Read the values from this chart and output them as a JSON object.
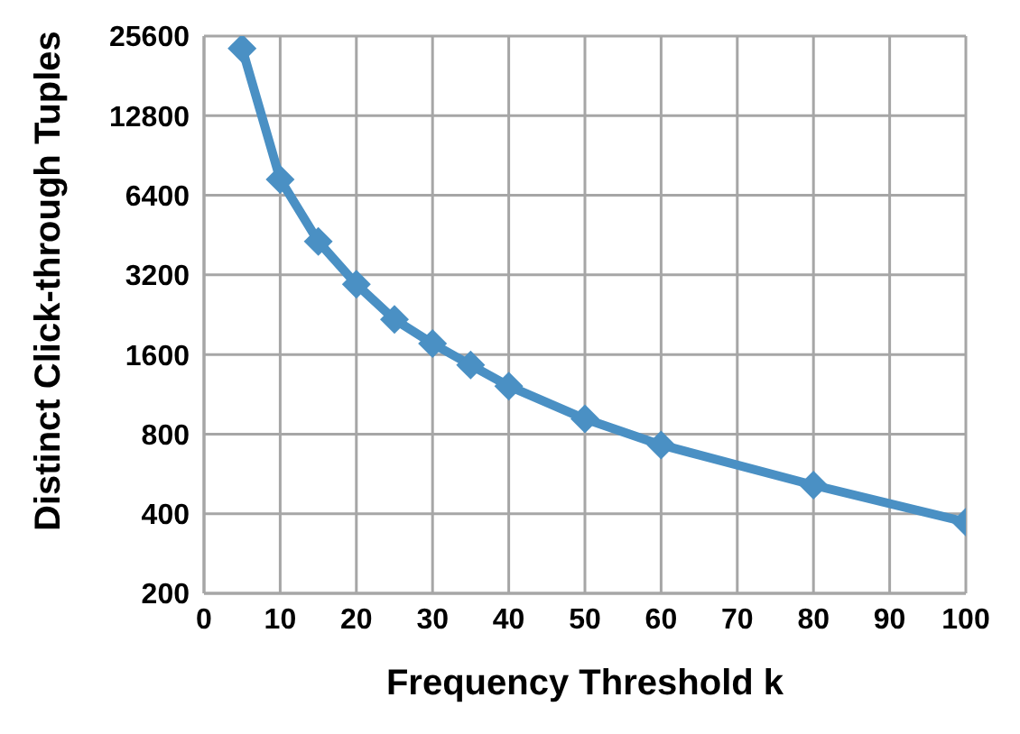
{
  "chart_data": {
    "type": "line",
    "xlabel": "Frequency Threshold k",
    "ylabel": "Distinct Click-through Tuples",
    "x": [
      5,
      10,
      15,
      20,
      25,
      30,
      35,
      40,
      50,
      60,
      80,
      100
    ],
    "series": [
      {
        "color": "#4a90c4",
        "values": [
          23000,
          7350,
          4280,
          2950,
          2170,
          1760,
          1460,
          1215,
          913,
          728,
          513,
          372
        ]
      }
    ],
    "xlim": [
      0,
      100
    ],
    "xticks": [
      0,
      10,
      20,
      30,
      40,
      50,
      60,
      70,
      80,
      90,
      100
    ],
    "ylim": [
      200,
      25600
    ],
    "yticks": [
      200,
      400,
      800,
      1600,
      3200,
      6400,
      12800,
      25600
    ],
    "log": "y",
    "grid": true,
    "marker": "diamond",
    "line_style": "solid",
    "legend": false
  }
}
